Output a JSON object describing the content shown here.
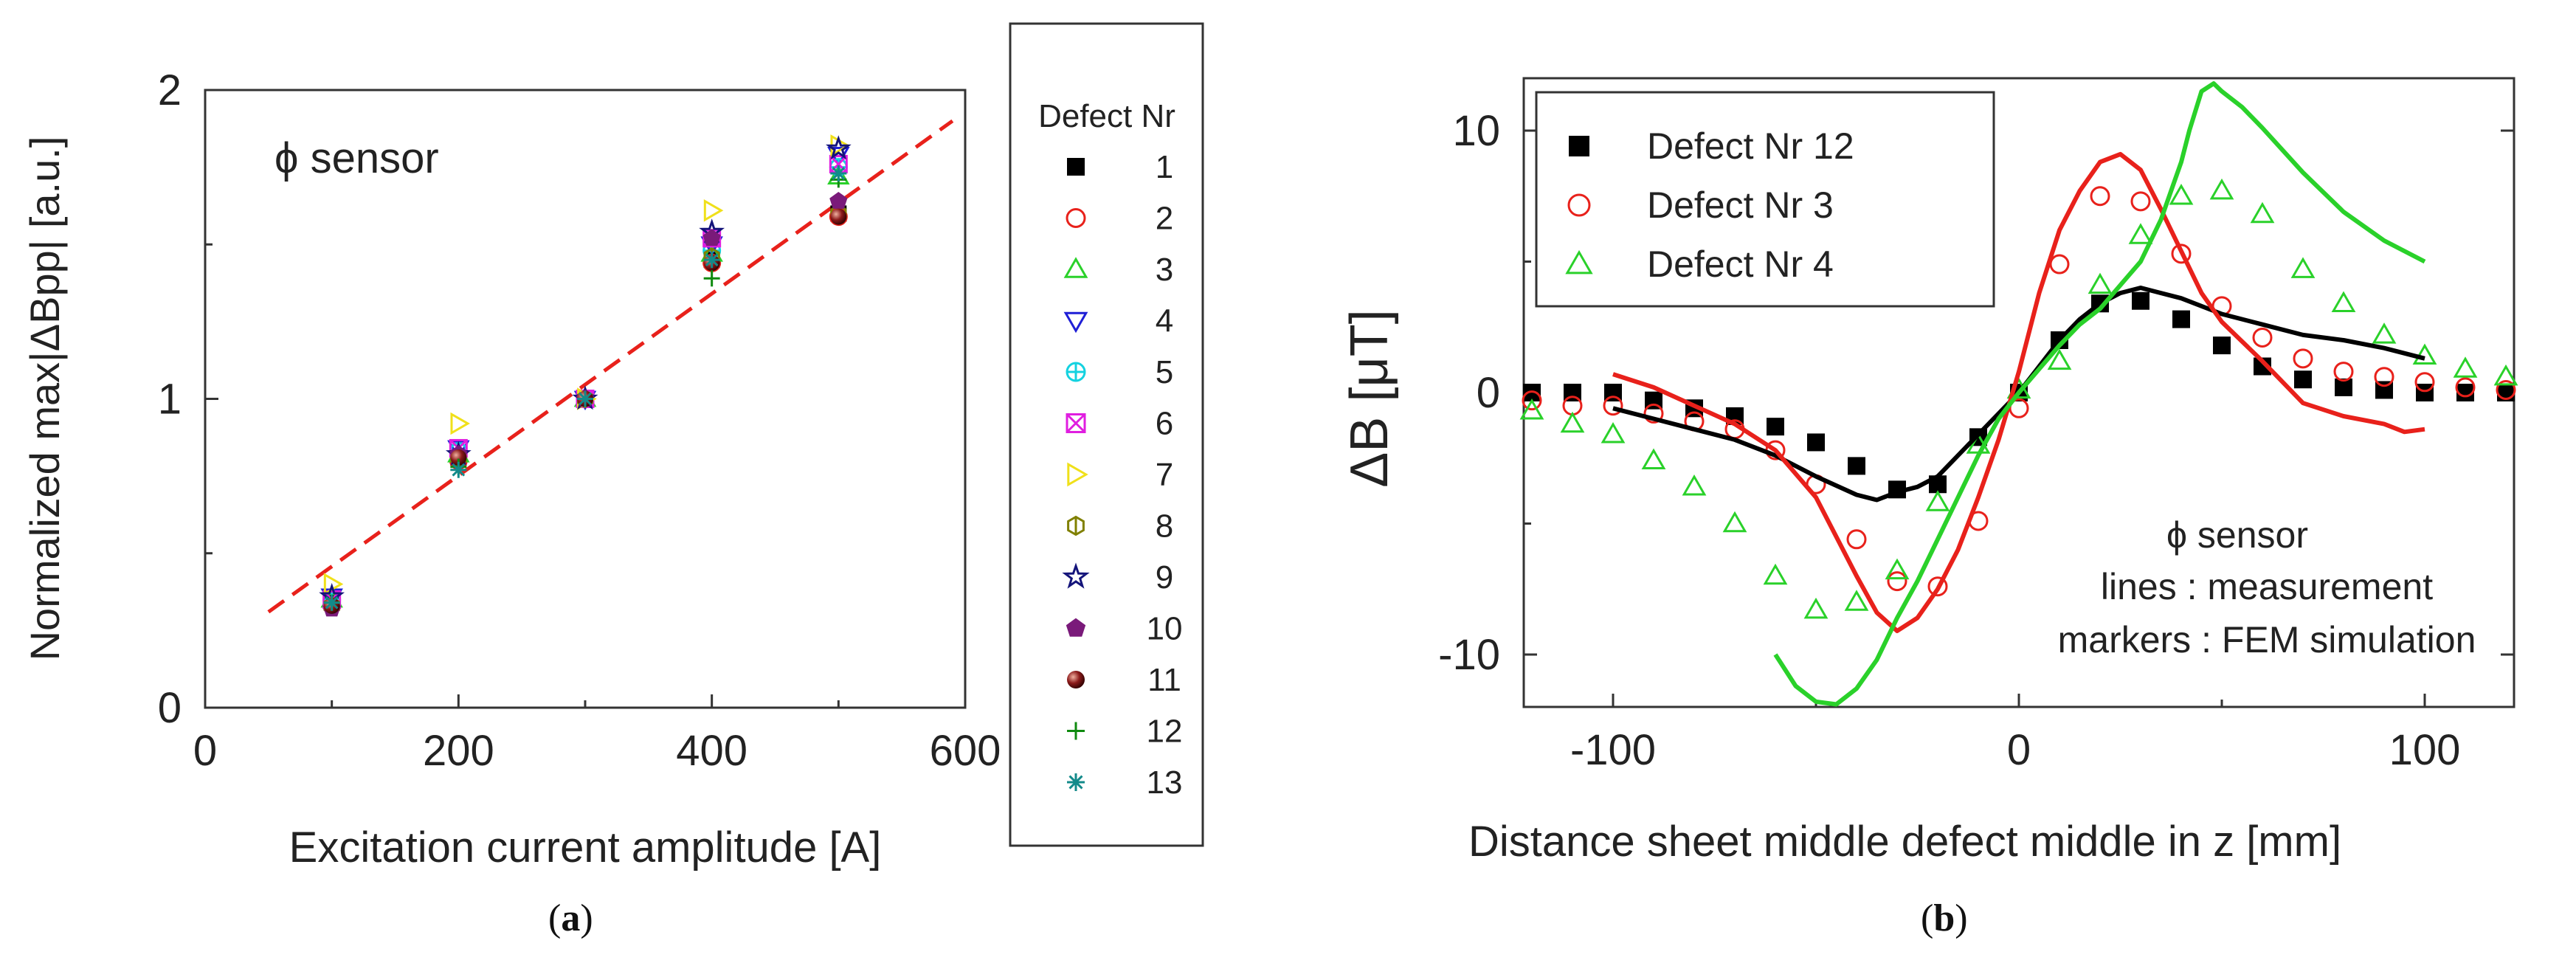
{
  "captions": {
    "a": "a",
    "b": "b"
  },
  "chart_data": [
    {
      "type": "scatter",
      "panel": "a",
      "xlabel": "Excitation current amplitude [A]",
      "ylabel": "Normalized max|ΔBpp| [a.u.]",
      "xlim": [
        0,
        600
      ],
      "ylim": [
        0,
        2
      ],
      "xticks": [
        "0",
        "200",
        "400",
        "600"
      ],
      "yticks": [
        "0",
        "1",
        "2"
      ],
      "annotation": "ϕ sensor",
      "legend_title": "Defect Nr",
      "legend_position": "outside-right",
      "fit_line": {
        "name": "linear fit",
        "x": [
          50,
          590
        ],
        "y": [
          0.31,
          1.9
        ],
        "color": "#e8211b",
        "style": "dashed"
      },
      "series": [
        {
          "name": "1",
          "marker": "square-filled",
          "color": "#000000",
          "x": [
            100,
            200,
            300,
            400,
            500
          ],
          "y": [
            0.34,
            0.81,
            1.0,
            1.45,
            1.6
          ]
        },
        {
          "name": "2",
          "marker": "circle-open",
          "color": "#e8211b",
          "x": [
            100,
            200,
            300,
            400,
            500
          ],
          "y": [
            0.33,
            0.8,
            1.0,
            1.44,
            1.59
          ]
        },
        {
          "name": "3",
          "marker": "triangle-up-open",
          "color": "#2ad12a",
          "x": [
            100,
            200,
            300,
            400,
            500
          ],
          "y": [
            0.35,
            0.82,
            1.0,
            1.47,
            1.72
          ]
        },
        {
          "name": "4",
          "marker": "triangle-down-open",
          "color": "#1f1fd6",
          "x": [
            100,
            200,
            300,
            400,
            500
          ],
          "y": [
            0.36,
            0.84,
            1.0,
            1.5,
            1.79
          ]
        },
        {
          "name": "5",
          "marker": "crossed-circle",
          "color": "#14d2e0",
          "x": [
            100,
            200,
            300,
            400,
            500
          ],
          "y": [
            0.35,
            0.83,
            1.0,
            1.48,
            1.75
          ]
        },
        {
          "name": "6",
          "marker": "x-square",
          "color": "#e01ee0",
          "x": [
            100,
            200,
            300,
            400,
            500
          ],
          "y": [
            0.35,
            0.84,
            1.0,
            1.52,
            1.76
          ]
        },
        {
          "name": "7",
          "marker": "triangle-right-open",
          "color": "#f0e01a",
          "x": [
            100,
            200,
            300,
            400,
            500
          ],
          "y": [
            0.4,
            0.92,
            1.0,
            1.61,
            1.82
          ]
        },
        {
          "name": "8",
          "marker": "hexagon-open",
          "color": "#808000",
          "x": [
            100,
            200,
            300,
            400,
            500
          ],
          "y": [
            0.33,
            0.81,
            1.0,
            1.46,
            1.6
          ]
        },
        {
          "name": "9",
          "marker": "star-open",
          "color": "#14147a",
          "x": [
            100,
            200,
            300,
            400,
            500
          ],
          "y": [
            0.36,
            0.82,
            1.0,
            1.54,
            1.81
          ]
        },
        {
          "name": "10",
          "marker": "pentagon-filled",
          "color": "#7a1a7a",
          "x": [
            100,
            200,
            300,
            400,
            500
          ],
          "y": [
            0.32,
            0.82,
            1.0,
            1.52,
            1.64
          ]
        },
        {
          "name": "11",
          "marker": "sphere",
          "color": "#8b1a1a",
          "x": [
            100,
            200,
            300,
            400,
            500
          ],
          "y": [
            0.33,
            0.81,
            1.0,
            1.44,
            1.59
          ]
        },
        {
          "name": "12",
          "marker": "plus",
          "color": "#0f8a0f",
          "x": [
            100,
            200,
            300,
            400,
            500
          ],
          "y": [
            0.34,
            0.78,
            1.0,
            1.39,
            1.71
          ]
        },
        {
          "name": "13",
          "marker": "asterisk",
          "color": "#138a8a",
          "x": [
            100,
            200,
            300,
            400,
            500
          ],
          "y": [
            0.34,
            0.77,
            1.0,
            1.45,
            1.73
          ]
        }
      ]
    },
    {
      "type": "line",
      "panel": "b",
      "xlabel": "Distance sheet middle defect middle in z [mm]",
      "ylabel": "ΔB [μT]",
      "xlim": [
        -122,
        122
      ],
      "ylim": [
        -12,
        12
      ],
      "xticks": [
        "-100",
        "0",
        "100"
      ],
      "yticks": [
        "-10",
        "0",
        "10"
      ],
      "annotations": [
        "ϕ sensor",
        "lines : measurement",
        "markers : FEM simulation"
      ],
      "legend_position": "top-left",
      "series": [
        {
          "name": "Defect Nr 12",
          "color": "#000000",
          "marker": "square-filled",
          "line": {
            "x": [
              -100,
              -90,
              -80,
              -70,
              -60,
              -50,
              -40,
              -35,
              -30,
              -25,
              -20,
              -15,
              -10,
              -5,
              0,
              5,
              10,
              15,
              20,
              25,
              30,
              40,
              50,
              60,
              70,
              80,
              90,
              100
            ],
            "y": [
              -0.6,
              -1.0,
              -1.4,
              -1.8,
              -2.4,
              -3.2,
              -3.9,
              -4.1,
              -3.8,
              -3.6,
              -3.2,
              -2.4,
              -1.6,
              -0.8,
              0,
              1.0,
              2.0,
              2.8,
              3.4,
              3.8,
              4.0,
              3.6,
              3.0,
              2.6,
              2.2,
              2.0,
              1.7,
              1.3
            ]
          },
          "markers": {
            "x": [
              -120,
              -110,
              -100,
              -90,
              -80,
              -70,
              -60,
              -50,
              -40,
              -30,
              -20,
              -10,
              0,
              10,
              20,
              30,
              40,
              50,
              60,
              70,
              80,
              90,
              100,
              110,
              120
            ],
            "y": [
              0,
              0,
              0,
              -0.3,
              -0.6,
              -0.9,
              -1.3,
              -1.9,
              -2.8,
              -3.7,
              -3.5,
              -1.7,
              0,
              2.0,
              3.4,
              3.5,
              2.8,
              1.8,
              1.0,
              0.5,
              0.2,
              0.1,
              0,
              0,
              0
            ]
          }
        },
        {
          "name": "Defect Nr 3",
          "color": "#e8211b",
          "marker": "circle-open",
          "line": {
            "x": [
              -100,
              -90,
              -80,
              -70,
              -60,
              -50,
              -45,
              -40,
              -35,
              -30,
              -25,
              -20,
              -15,
              -10,
              -5,
              0,
              5,
              10,
              15,
              20,
              25,
              30,
              35,
              40,
              45,
              50,
              60,
              70,
              80,
              90,
              95,
              100
            ],
            "y": [
              0.7,
              0.2,
              -0.5,
              -1.2,
              -2.2,
              -4.0,
              -5.5,
              -7.0,
              -8.4,
              -9.1,
              -8.6,
              -7.5,
              -6.0,
              -4.0,
              -1.8,
              0.8,
              3.8,
              6.2,
              7.7,
              8.8,
              9.1,
              8.5,
              7.0,
              5.4,
              3.8,
              2.7,
              1.2,
              -0.4,
              -0.9,
              -1.2,
              -1.5,
              -1.4
            ]
          },
          "markers": {
            "x": [
              -120,
              -110,
              -100,
              -90,
              -80,
              -70,
              -60,
              -50,
              -40,
              -30,
              -20,
              -10,
              0,
              10,
              20,
              30,
              40,
              50,
              60,
              70,
              80,
              90,
              100,
              110,
              120
            ],
            "y": [
              -0.3,
              -0.5,
              -0.5,
              -0.8,
              -1.1,
              -1.4,
              -2.2,
              -3.5,
              -5.6,
              -7.2,
              -7.4,
              -4.9,
              -0.6,
              4.9,
              7.5,
              7.3,
              5.3,
              3.3,
              2.1,
              1.3,
              0.8,
              0.6,
              0.4,
              0.2,
              0.1
            ]
          }
        },
        {
          "name": "Defect Nr 4",
          "color": "#2ad12a",
          "marker": "triangle-up-open",
          "line": {
            "x": [
              -60,
              -55,
              -50,
              -45,
              -40,
              -35,
              -30,
              -25,
              -20,
              -15,
              -10,
              -5,
              0,
              5,
              10,
              15,
              20,
              25,
              30,
              35,
              40,
              42,
              45,
              48,
              50,
              55,
              60,
              70,
              80,
              90,
              100
            ],
            "y": [
              -10.0,
              -11.2,
              -11.8,
              -11.9,
              -11.3,
              -10.2,
              -8.6,
              -7.2,
              -5.6,
              -4.0,
              -2.4,
              -1.0,
              0,
              0.9,
              1.8,
              2.6,
              3.2,
              4.1,
              5.0,
              6.6,
              8.8,
              10.0,
              11.5,
              11.8,
              11.5,
              10.9,
              10.1,
              8.4,
              6.9,
              5.8,
              5.0
            ]
          },
          "markers": {
            "x": [
              -120,
              -110,
              -100,
              -90,
              -80,
              -70,
              -60,
              -50,
              -40,
              -30,
              -20,
              -10,
              0,
              10,
              20,
              30,
              40,
              50,
              60,
              70,
              80,
              90,
              100,
              110,
              120
            ],
            "y": [
              -0.7,
              -1.2,
              -1.6,
              -2.6,
              -3.6,
              -5.0,
              -7.0,
              -8.3,
              -8.0,
              -6.8,
              -4.2,
              -2.0,
              0.1,
              1.2,
              4.1,
              6.0,
              7.5,
              7.7,
              6.8,
              4.7,
              3.4,
              2.2,
              1.4,
              0.9,
              0.6
            ]
          }
        }
      ]
    }
  ]
}
